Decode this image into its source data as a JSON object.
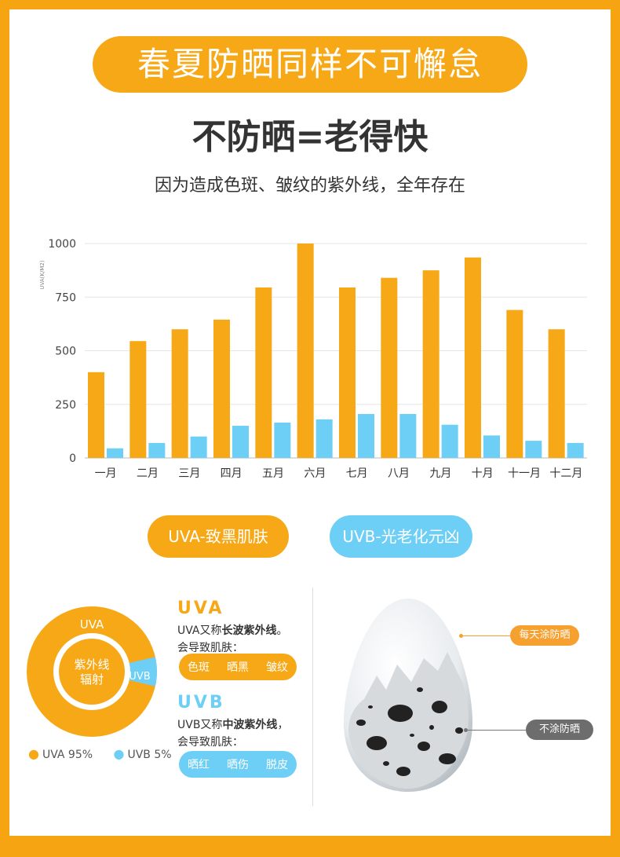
{
  "header": {
    "banner": "春夏防晒同样不可懈怠",
    "headline": "不防晒=老得快",
    "subline": "因为造成色斑、皱纹的紫外线，全年存在"
  },
  "chart_data": {
    "type": "bar",
    "ylabel": "UVA(K/M2)",
    "ylim": [
      0,
      1000
    ],
    "yticks": [
      0,
      250,
      500,
      750,
      1000
    ],
    "categories": [
      "一月",
      "二月",
      "三月",
      "四月",
      "五月",
      "六月",
      "七月",
      "八月",
      "九月",
      "十月",
      "十一月",
      "十二月"
    ],
    "series": [
      {
        "name": "UVA",
        "color": "#f7a817",
        "values": [
          400,
          545,
          600,
          645,
          795,
          1000,
          795,
          840,
          875,
          935,
          690,
          600
        ]
      },
      {
        "name": "UVB",
        "color": "#6dcff6",
        "values": [
          45,
          70,
          100,
          150,
          165,
          180,
          205,
          205,
          155,
          105,
          80,
          70
        ]
      }
    ],
    "grid": true
  },
  "pills": {
    "uva": "UVA-致黑肌肤",
    "uvb": "UVB-光老化元凶"
  },
  "donut": {
    "center_line1": "紫外线",
    "center_line2": "辐射",
    "uva_label": "UVA",
    "uvb_label": "UVB",
    "uva_percent": 95,
    "uvb_percent": 5,
    "legend_uva": "UVA  95%",
    "legend_uvb": "UVB 5%"
  },
  "uva_info": {
    "title": "UVA",
    "line1_pre": "UVA又称",
    "line1_bold": "长波紫外线",
    "line1_post": "。",
    "line2": "会导致肌肤：",
    "tags": [
      "色斑",
      "晒黑",
      "皱纹"
    ]
  },
  "uvb_info": {
    "title": "UVB",
    "line1_pre": "UVB又称",
    "line1_bold": "中波紫外线",
    "line1_post": "，",
    "line2": "会导致肌肤：",
    "tags": [
      "晒红",
      "晒伤",
      "脱皮"
    ]
  },
  "egg": {
    "callout_daily": "每天涂防晒",
    "callout_none": "不涂防晒"
  },
  "colors": {
    "orange": "#f7a817",
    "blue": "#6dcff6",
    "frame": "#f6a411"
  }
}
